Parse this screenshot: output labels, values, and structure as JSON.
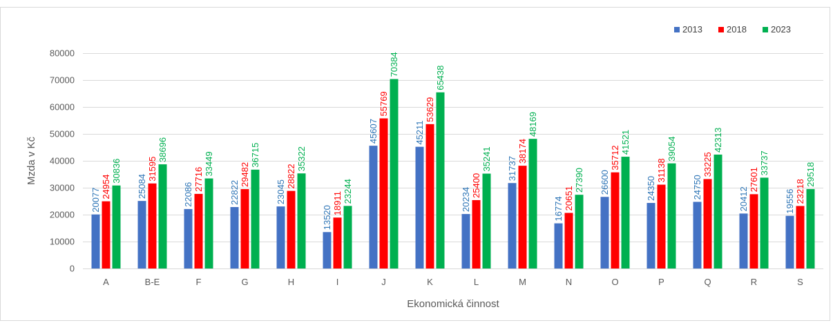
{
  "chart_data": {
    "type": "bar",
    "title": "",
    "xlabel": "Ekonomická činnost",
    "ylabel": "Mzda v Kč",
    "ylim": [
      0,
      80000
    ],
    "yticks": [
      0,
      10000,
      20000,
      30000,
      40000,
      50000,
      60000,
      70000,
      80000
    ],
    "grid": true,
    "legend_position": "top-right",
    "categories": [
      "A",
      "B-E",
      "F",
      "G",
      "H",
      "I",
      "J",
      "K",
      "L",
      "M",
      "N",
      "O",
      "P",
      "Q",
      "R",
      "S"
    ],
    "series": [
      {
        "name": "2013",
        "color": "#4472c4",
        "label_color": "#2e75b6",
        "values": [
          20077,
          25084,
          22086,
          22822,
          23045,
          13520,
          45607,
          45211,
          20234,
          31737,
          16774,
          26600,
          24350,
          24750,
          20412,
          19556
        ]
      },
      {
        "name": "2018",
        "color": "#ff0000",
        "label_color": "#ff0000",
        "values": [
          24954,
          31595,
          27716,
          29482,
          28822,
          18911,
          55769,
          53629,
          25400,
          38174,
          20651,
          35712,
          31138,
          33225,
          27601,
          23218
        ]
      },
      {
        "name": "2023",
        "color": "#00b050",
        "label_color": "#00b050",
        "values": [
          30836,
          38696,
          33449,
          36715,
          35322,
          23244,
          70384,
          65438,
          35241,
          48169,
          27390,
          41521,
          39054,
          42313,
          33737,
          29518
        ]
      }
    ]
  }
}
